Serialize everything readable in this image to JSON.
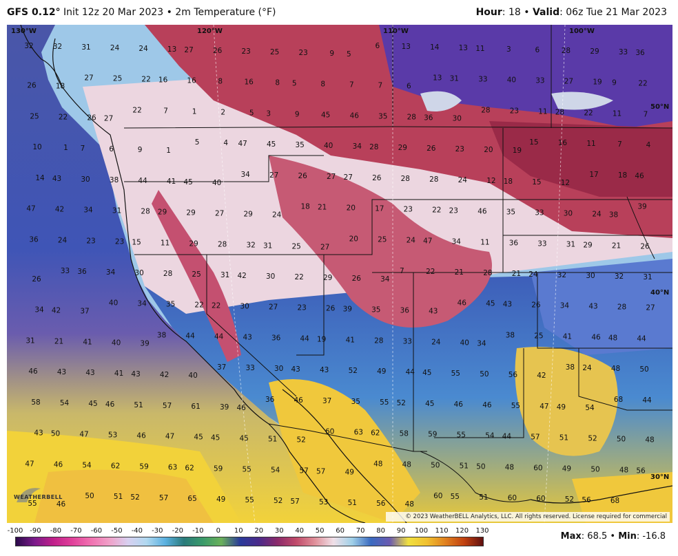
{
  "header": {
    "model": "GFS 0.12",
    "init": "Init 12z 20 Mar 2023",
    "field": "2m Temperature (°F)",
    "hour_label": "Hour",
    "hour": "18",
    "valid_label": "Valid",
    "valid": "06z Tue 21 Mar 2023"
  },
  "map": {
    "lon_labels": [
      "130°W",
      "120°W",
      "110°W",
      "100°W"
    ],
    "lat_labels": [
      "50°N",
      "40°N",
      "30°N"
    ],
    "copyright": "© 2023 WeatherBELL Analytics, LLC. All rights reserved. License required for commercial distribution.",
    "logo": "WEATHERBELL",
    "values": [
      "32",
      "32",
      "31",
      "24",
      "24",
      "13",
      "27",
      "26",
      "23",
      "25",
      "23",
      "9",
      "5",
      "6",
      "13",
      "14",
      "13",
      "11",
      "3",
      "6",
      "28",
      "29",
      "33",
      "36",
      "26",
      "18",
      "27",
      "25",
      "22",
      "16",
      "16",
      "8",
      "16",
      "8",
      "5",
      "8",
      "7",
      "7",
      "6",
      "13",
      "31",
      "33",
      "40",
      "33",
      "27",
      "19",
      "9",
      "22",
      "25",
      "22",
      "26",
      "27",
      "22",
      "7",
      "1",
      "2",
      "5",
      "3",
      "9",
      "50°N",
      "45",
      "46",
      "35",
      "28",
      "36",
      "30",
      "28",
      "23",
      "11",
      "28",
      "22",
      "11",
      "7",
      "10",
      "1",
      "7",
      "6",
      "9",
      "1",
      "5",
      "4",
      "47",
      "45",
      "35",
      "40",
      "34",
      "28",
      "29",
      "26",
      "23",
      "20",
      "19",
      "15",
      "16",
      "11",
      "7",
      "4",
      "14",
      "43",
      "30",
      "38",
      "44",
      "41",
      "45",
      "40",
      "34",
      "27",
      "26",
      "27",
      "27",
      "26",
      "28",
      "28",
      "24",
      "12",
      "18",
      "15",
      "12",
      "17",
      "18",
      "46",
      "47",
      "42",
      "34",
      "31",
      "28",
      "29",
      "29",
      "27",
      "29",
      "24",
      "18",
      "21",
      "20",
      "17",
      "23",
      "22",
      "23",
      "46",
      "35",
      "33",
      "30",
      "24",
      "38",
      "39",
      "36",
      "24",
      "23",
      "23",
      "15",
      "11",
      "29",
      "28",
      "32",
      "31",
      "25",
      "27",
      "20",
      "25",
      "24",
      "47",
      "34",
      "11",
      "36",
      "33",
      "31",
      "29",
      "21",
      "26",
      "26",
      "33",
      "36",
      "34",
      "30",
      "28",
      "25",
      "31",
      "42",
      "30",
      "22",
      "29",
      "26",
      "34",
      "7",
      "22",
      "21",
      "28",
      "21",
      "24",
      "32",
      "30",
      "32",
      "31",
      "34",
      "42",
      "37",
      "40",
      "34",
      "35",
      "22",
      "22",
      "30",
      "27",
      "23",
      "26",
      "39",
      "35",
      "36",
      "43",
      "46",
      "45",
      "43",
      "26",
      "34",
      "43",
      "28",
      "27",
      "31",
      "21",
      "41",
      "40",
      "39",
      "38",
      "44",
      "44",
      "43",
      "40°N",
      "36",
      "44",
      "19",
      "41",
      "28",
      "33",
      "24",
      "40",
      "34",
      "38",
      "25",
      "41",
      "46",
      "48",
      "44",
      "46",
      "43",
      "43",
      "41",
      "43",
      "42",
      "40",
      "37",
      "33",
      "30",
      "43",
      "43",
      "52",
      "49",
      "44",
      "45",
      "55",
      "50",
      "56",
      "42",
      "38",
      "24",
      "48",
      "50",
      "58",
      "54",
      "45",
      "46",
      "51",
      "57",
      "61",
      "39",
      "46",
      "36",
      "46",
      "37",
      "35",
      "55",
      "52",
      "45",
      "46",
      "46",
      "55",
      "47",
      "49",
      "54",
      "68",
      "44",
      "43",
      "50",
      "47",
      "53",
      "46",
      "47",
      "45",
      "45",
      "45",
      "51",
      "52",
      "60",
      "63",
      "62",
      "58",
      "59",
      "55",
      "54",
      "44",
      "57",
      "51",
      "52",
      "50",
      "48",
      "47",
      "46",
      "54",
      "62",
      "59",
      "63",
      "62",
      "59",
      "55",
      "54",
      "57",
      "57",
      "49",
      "48",
      "48",
      "50",
      "51",
      "50",
      "48",
      "60",
      "49",
      "50",
      "48",
      "56",
      "55",
      "46",
      "50",
      "51",
      "52",
      "30°N",
      "57",
      "65",
      "49",
      "55",
      "52",
      "57",
      "53",
      "51",
      "56",
      "48",
      "60",
      "55",
      "51",
      "60",
      "60",
      "52",
      "56",
      "68"
    ]
  },
  "legend": {
    "labels": [
      "-100",
      "-90",
      "-80",
      "-70",
      "-60",
      "-50",
      "-40",
      "-30",
      "-20",
      "-10",
      "0",
      "10",
      "20",
      "30",
      "40",
      "50",
      "60",
      "70",
      "80",
      "90",
      "100",
      "110",
      "120",
      "130"
    ],
    "max_label": "Max",
    "max": "68.5",
    "min_label": "Min",
    "min": "-16.8"
  }
}
